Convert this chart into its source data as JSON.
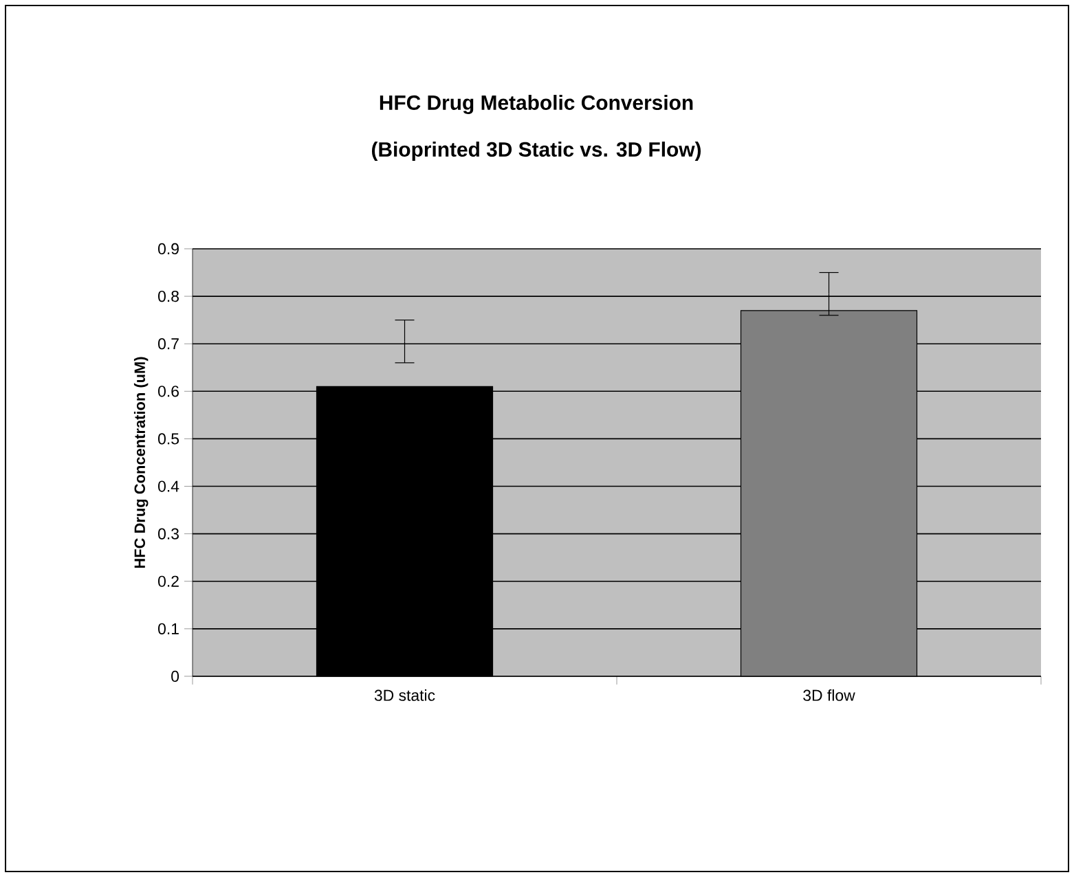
{
  "chart_data": {
    "type": "bar",
    "title": "HFC Drug Metabolic Conversion",
    "subtitle": "(Bioprinted 3D Static vs. 3D Flow)",
    "ylabel": "HFC Drug Concentration (uM)",
    "categories": [
      "3D static",
      "3D flow"
    ],
    "values": [
      0.61,
      0.77
    ],
    "colors": [
      "#000000",
      "#808080"
    ],
    "errors": [
      [
        0.66,
        0.75
      ],
      [
        0.76,
        0.85
      ]
    ],
    "ylim": [
      0,
      0.9
    ],
    "yticks": [
      0,
      0.1,
      0.2,
      0.3,
      0.4,
      0.5,
      0.6,
      0.7,
      0.8,
      0.9
    ],
    "grid": "y"
  }
}
